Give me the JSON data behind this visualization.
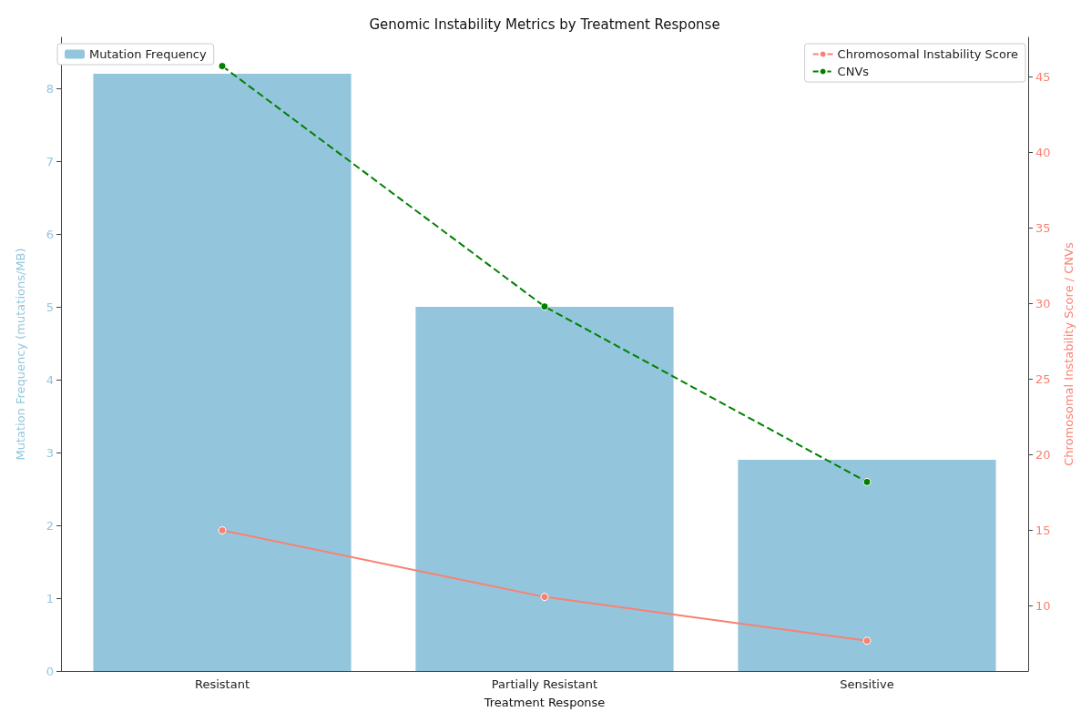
{
  "chart_data": {
    "type": "bar",
    "title": "Genomic Instability Metrics by Treatment Response",
    "xlabel": "Treatment Response",
    "ylabel": "Mutation Frequency (mutations/MB)",
    "y2label": "Chromosomal Instability Score / CNVs",
    "categories": [
      "Resistant",
      "Partially Resistant",
      "Sensitive"
    ],
    "series": [
      {
        "name": "Mutation Frequency",
        "color": "#93c6dc",
        "values": [
          8.2,
          5.0,
          2.9
        ]
      },
      {
        "name": "Chromosomal Instability Score",
        "type": "line",
        "axis": "y2",
        "color": "#fa8072",
        "line_style": "solid",
        "values": [
          15.0,
          10.6,
          7.7
        ]
      },
      {
        "name": "CNVs",
        "type": "line",
        "axis": "y2",
        "color": "#008000",
        "line_style": "dashed",
        "values": [
          45.7,
          29.8,
          18.2
        ]
      }
    ],
    "ylim": [
      0,
      8.7
    ],
    "yticks": [
      0,
      1,
      2,
      3,
      4,
      5,
      6,
      7,
      8
    ],
    "y2lim": [
      5.7,
      47.6
    ],
    "y2ticks": [
      10,
      15,
      20,
      25,
      30,
      35,
      40,
      45
    ],
    "marker": "circle",
    "grid": false,
    "legend": "top"
  }
}
